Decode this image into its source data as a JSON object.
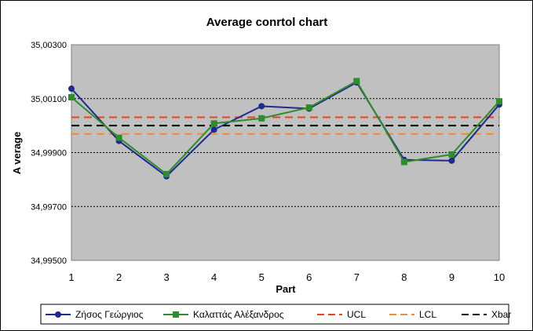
{
  "chart_data": {
    "type": "line",
    "title": "Average conrtol chart",
    "xlabel": "Part",
    "ylabel": "A verage",
    "x": [
      1,
      2,
      3,
      4,
      5,
      6,
      7,
      8,
      9,
      10
    ],
    "ytick_labels": [
      "34,99500",
      "34,99700",
      "34,99900",
      "35,00100",
      "35,00300"
    ],
    "ytick_values": [
      34.995,
      34.997,
      34.999,
      35.001,
      35.003
    ],
    "ylim": [
      34.995,
      35.003
    ],
    "grid": true,
    "legend_position": "bottom",
    "series": [
      {
        "name": "Ζήσος Γεώργιος",
        "color": "#1f2a8c",
        "marker": "circle",
        "style": "solid",
        "values": [
          35.00137,
          34.99943,
          34.99812,
          34.99985,
          35.00072,
          35.00063,
          35.0016,
          34.99873,
          34.9987,
          35.00078
        ]
      },
      {
        "name": "Καλαττάς Αλέξανδρος",
        "color": "#2e8b2e",
        "marker": "square",
        "style": "solid",
        "values": [
          35.00105,
          34.99955,
          34.9982,
          35.00008,
          35.00027,
          35.00067,
          35.00165,
          34.99865,
          34.99893,
          35.0009
        ]
      },
      {
        "name": "UCL",
        "color": "#e8402a",
        "marker": "none",
        "style": "dashed",
        "values": [
          35.00031,
          35.00031,
          35.00031,
          35.00031,
          35.00031,
          35.00031,
          35.00031,
          35.00031,
          35.00031,
          35.00031
        ]
      },
      {
        "name": "LCL",
        "color": "#f08a3c",
        "marker": "none",
        "style": "dashed",
        "values": [
          34.99969,
          34.99969,
          34.99969,
          34.99969,
          34.99969,
          34.99969,
          34.99969,
          34.99969,
          34.99969,
          34.99969
        ]
      },
      {
        "name": "Xbar",
        "color": "#000000",
        "marker": "none",
        "style": "dashed",
        "values": [
          35.0,
          35.0,
          35.0,
          35.0,
          35.0,
          35.0,
          35.0,
          35.0,
          35.0,
          35.0
        ]
      }
    ],
    "colors": {
      "plot_background": "#c0c0c0",
      "gridline": "#000000"
    }
  }
}
